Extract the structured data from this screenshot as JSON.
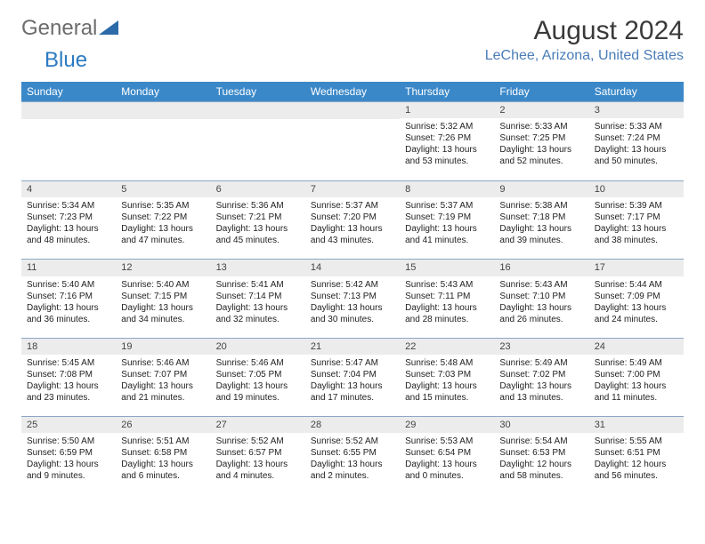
{
  "logo": {
    "text1": "General",
    "text2": "Blue",
    "tri_color": "#2c6ba8"
  },
  "title": "August 2024",
  "location": "LeChee, Arizona, United States",
  "colors": {
    "header_bg": "#3b88c8",
    "header_text": "#ffffff",
    "daynum_bg": "#ececec",
    "border": "#8aa8c5",
    "location_color": "#4a7db8",
    "logo_gray": "#6c6c6c",
    "logo_blue": "#2c7ac2"
  },
  "day_headers": [
    "Sunday",
    "Monday",
    "Tuesday",
    "Wednesday",
    "Thursday",
    "Friday",
    "Saturday"
  ],
  "weeks": [
    [
      {
        "n": "",
        "sr": "",
        "ss": "",
        "dl": ""
      },
      {
        "n": "",
        "sr": "",
        "ss": "",
        "dl": ""
      },
      {
        "n": "",
        "sr": "",
        "ss": "",
        "dl": ""
      },
      {
        "n": "",
        "sr": "",
        "ss": "",
        "dl": ""
      },
      {
        "n": "1",
        "sr": "Sunrise: 5:32 AM",
        "ss": "Sunset: 7:26 PM",
        "dl": "Daylight: 13 hours and 53 minutes."
      },
      {
        "n": "2",
        "sr": "Sunrise: 5:33 AM",
        "ss": "Sunset: 7:25 PM",
        "dl": "Daylight: 13 hours and 52 minutes."
      },
      {
        "n": "3",
        "sr": "Sunrise: 5:33 AM",
        "ss": "Sunset: 7:24 PM",
        "dl": "Daylight: 13 hours and 50 minutes."
      }
    ],
    [
      {
        "n": "4",
        "sr": "Sunrise: 5:34 AM",
        "ss": "Sunset: 7:23 PM",
        "dl": "Daylight: 13 hours and 48 minutes."
      },
      {
        "n": "5",
        "sr": "Sunrise: 5:35 AM",
        "ss": "Sunset: 7:22 PM",
        "dl": "Daylight: 13 hours and 47 minutes."
      },
      {
        "n": "6",
        "sr": "Sunrise: 5:36 AM",
        "ss": "Sunset: 7:21 PM",
        "dl": "Daylight: 13 hours and 45 minutes."
      },
      {
        "n": "7",
        "sr": "Sunrise: 5:37 AM",
        "ss": "Sunset: 7:20 PM",
        "dl": "Daylight: 13 hours and 43 minutes."
      },
      {
        "n": "8",
        "sr": "Sunrise: 5:37 AM",
        "ss": "Sunset: 7:19 PM",
        "dl": "Daylight: 13 hours and 41 minutes."
      },
      {
        "n": "9",
        "sr": "Sunrise: 5:38 AM",
        "ss": "Sunset: 7:18 PM",
        "dl": "Daylight: 13 hours and 39 minutes."
      },
      {
        "n": "10",
        "sr": "Sunrise: 5:39 AM",
        "ss": "Sunset: 7:17 PM",
        "dl": "Daylight: 13 hours and 38 minutes."
      }
    ],
    [
      {
        "n": "11",
        "sr": "Sunrise: 5:40 AM",
        "ss": "Sunset: 7:16 PM",
        "dl": "Daylight: 13 hours and 36 minutes."
      },
      {
        "n": "12",
        "sr": "Sunrise: 5:40 AM",
        "ss": "Sunset: 7:15 PM",
        "dl": "Daylight: 13 hours and 34 minutes."
      },
      {
        "n": "13",
        "sr": "Sunrise: 5:41 AM",
        "ss": "Sunset: 7:14 PM",
        "dl": "Daylight: 13 hours and 32 minutes."
      },
      {
        "n": "14",
        "sr": "Sunrise: 5:42 AM",
        "ss": "Sunset: 7:13 PM",
        "dl": "Daylight: 13 hours and 30 minutes."
      },
      {
        "n": "15",
        "sr": "Sunrise: 5:43 AM",
        "ss": "Sunset: 7:11 PM",
        "dl": "Daylight: 13 hours and 28 minutes."
      },
      {
        "n": "16",
        "sr": "Sunrise: 5:43 AM",
        "ss": "Sunset: 7:10 PM",
        "dl": "Daylight: 13 hours and 26 minutes."
      },
      {
        "n": "17",
        "sr": "Sunrise: 5:44 AM",
        "ss": "Sunset: 7:09 PM",
        "dl": "Daylight: 13 hours and 24 minutes."
      }
    ],
    [
      {
        "n": "18",
        "sr": "Sunrise: 5:45 AM",
        "ss": "Sunset: 7:08 PM",
        "dl": "Daylight: 13 hours and 23 minutes."
      },
      {
        "n": "19",
        "sr": "Sunrise: 5:46 AM",
        "ss": "Sunset: 7:07 PM",
        "dl": "Daylight: 13 hours and 21 minutes."
      },
      {
        "n": "20",
        "sr": "Sunrise: 5:46 AM",
        "ss": "Sunset: 7:05 PM",
        "dl": "Daylight: 13 hours and 19 minutes."
      },
      {
        "n": "21",
        "sr": "Sunrise: 5:47 AM",
        "ss": "Sunset: 7:04 PM",
        "dl": "Daylight: 13 hours and 17 minutes."
      },
      {
        "n": "22",
        "sr": "Sunrise: 5:48 AM",
        "ss": "Sunset: 7:03 PM",
        "dl": "Daylight: 13 hours and 15 minutes."
      },
      {
        "n": "23",
        "sr": "Sunrise: 5:49 AM",
        "ss": "Sunset: 7:02 PM",
        "dl": "Daylight: 13 hours and 13 minutes."
      },
      {
        "n": "24",
        "sr": "Sunrise: 5:49 AM",
        "ss": "Sunset: 7:00 PM",
        "dl": "Daylight: 13 hours and 11 minutes."
      }
    ],
    [
      {
        "n": "25",
        "sr": "Sunrise: 5:50 AM",
        "ss": "Sunset: 6:59 PM",
        "dl": "Daylight: 13 hours and 9 minutes."
      },
      {
        "n": "26",
        "sr": "Sunrise: 5:51 AM",
        "ss": "Sunset: 6:58 PM",
        "dl": "Daylight: 13 hours and 6 minutes."
      },
      {
        "n": "27",
        "sr": "Sunrise: 5:52 AM",
        "ss": "Sunset: 6:57 PM",
        "dl": "Daylight: 13 hours and 4 minutes."
      },
      {
        "n": "28",
        "sr": "Sunrise: 5:52 AM",
        "ss": "Sunset: 6:55 PM",
        "dl": "Daylight: 13 hours and 2 minutes."
      },
      {
        "n": "29",
        "sr": "Sunrise: 5:53 AM",
        "ss": "Sunset: 6:54 PM",
        "dl": "Daylight: 13 hours and 0 minutes."
      },
      {
        "n": "30",
        "sr": "Sunrise: 5:54 AM",
        "ss": "Sunset: 6:53 PM",
        "dl": "Daylight: 12 hours and 58 minutes."
      },
      {
        "n": "31",
        "sr": "Sunrise: 5:55 AM",
        "ss": "Sunset: 6:51 PM",
        "dl": "Daylight: 12 hours and 56 minutes."
      }
    ]
  ]
}
